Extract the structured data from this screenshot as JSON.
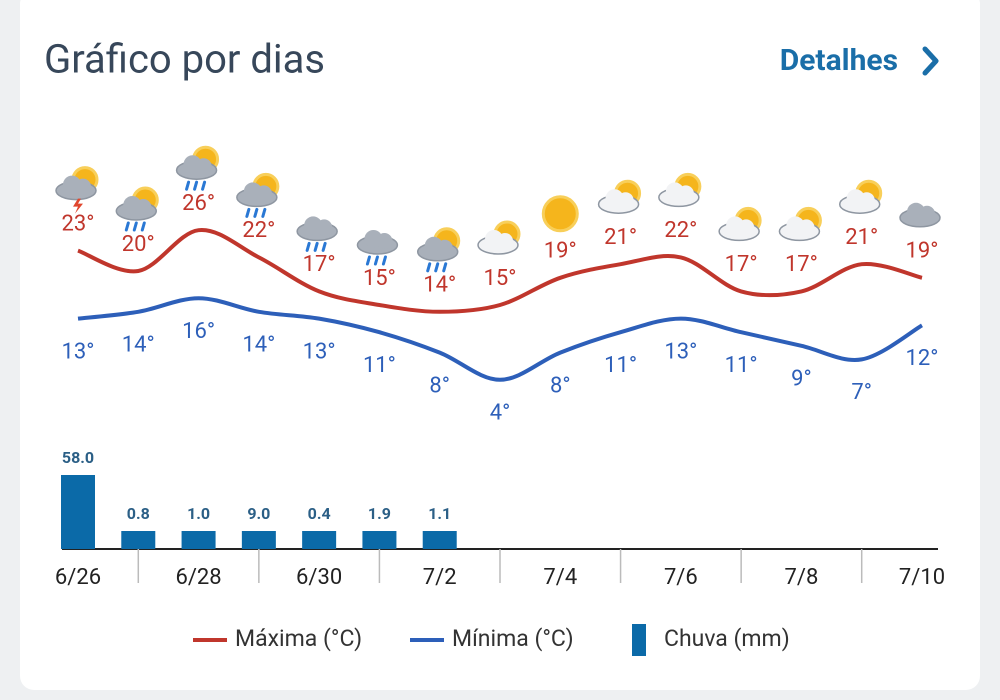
{
  "header": {
    "title": "Gráfico por dias",
    "link": "Detalhes"
  },
  "chart_data": {
    "type": "line",
    "categories": [
      "6/26",
      null,
      "6/28",
      null,
      "6/30",
      null,
      "7/2",
      null,
      "7/4",
      null,
      "7/6",
      null,
      "7/8",
      null,
      "7/10"
    ],
    "ylim": [
      0,
      30
    ],
    "y2lim": [
      0,
      58
    ],
    "series": [
      {
        "name": "Máxima (°C)",
        "type": "line",
        "color": "#c0362c",
        "values": [
          23,
          20,
          26,
          22,
          17,
          15,
          14,
          15,
          19,
          21,
          22,
          17,
          17,
          21,
          19
        ],
        "value_labels": [
          "23°",
          "20°",
          "26°",
          "22°",
          "17°",
          "15°",
          "14°",
          "15°",
          "19°",
          "21°",
          "22°",
          "17°",
          "17°",
          "21°",
          "19°"
        ]
      },
      {
        "name": "Mínima (°C)",
        "type": "line",
        "color": "#2d5fb9",
        "values": [
          13,
          14,
          16,
          14,
          13,
          11,
          8,
          4,
          8,
          11,
          13,
          11,
          9,
          7,
          12
        ],
        "value_labels": [
          "13°",
          "14°",
          "16°",
          "14°",
          "13°",
          "11°",
          "8°",
          "4°",
          "8°",
          "11°",
          "13°",
          "11°",
          "9°",
          "7°",
          "12°"
        ]
      },
      {
        "name": "Chuva (mm)",
        "type": "bar",
        "axis": "y2",
        "color": "#0b6aa8",
        "values": [
          58.0,
          0.8,
          1.0,
          9.0,
          0.4,
          1.9,
          1.1,
          null,
          null,
          null,
          null,
          null,
          null,
          null,
          null
        ],
        "value_labels": [
          "58.0",
          "0.8",
          "1.0",
          "9.0",
          "0.4",
          "1.9",
          "1.1",
          null,
          null,
          null,
          null,
          null,
          null,
          null,
          null
        ]
      }
    ]
  }
}
